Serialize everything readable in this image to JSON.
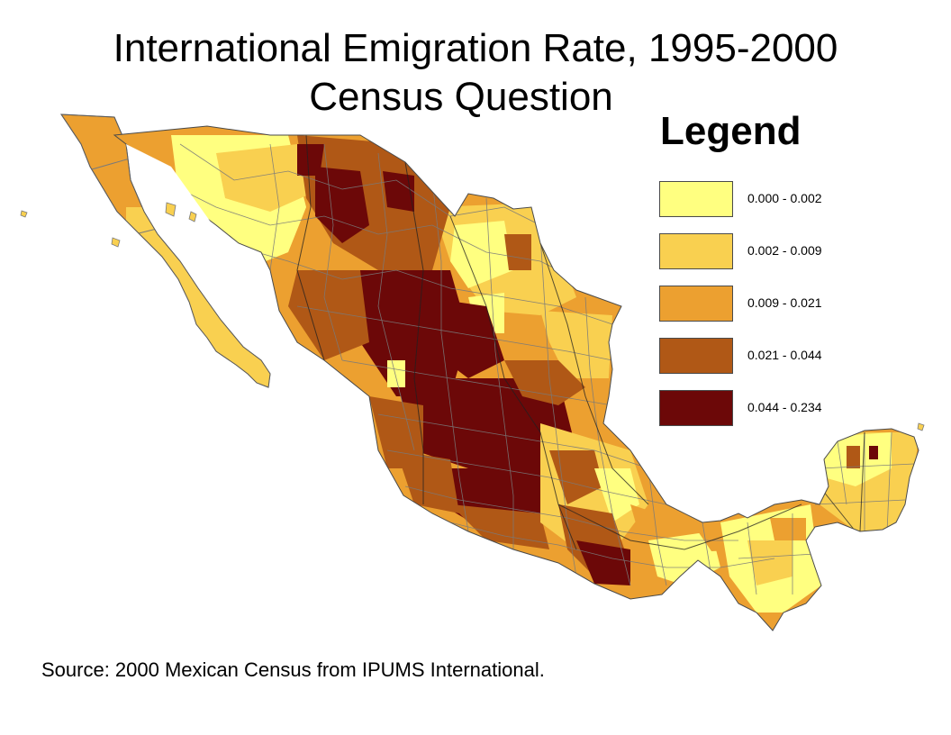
{
  "title": {
    "line1": "International Emigration Rate, 1995-2000",
    "line2": "Census Question"
  },
  "legend": {
    "title": "Legend",
    "classes": [
      {
        "label": "0.000 - 0.002",
        "color": "#ffff80"
      },
      {
        "label": "0.002 - 0.009",
        "color": "#f9d050"
      },
      {
        "label": "0.009 - 0.021",
        "color": "#eca030"
      },
      {
        "label": "0.021 - 0.044",
        "color": "#b05816"
      },
      {
        "label": "0.044 - 0.234",
        "color": "#6c0808"
      }
    ]
  },
  "source": "Source: 2000 Mexican Census from IPUMS International.",
  "colors": {
    "background": "#ffffff",
    "boundary": "#7a7a7a",
    "state_boundary": "#202020"
  }
}
